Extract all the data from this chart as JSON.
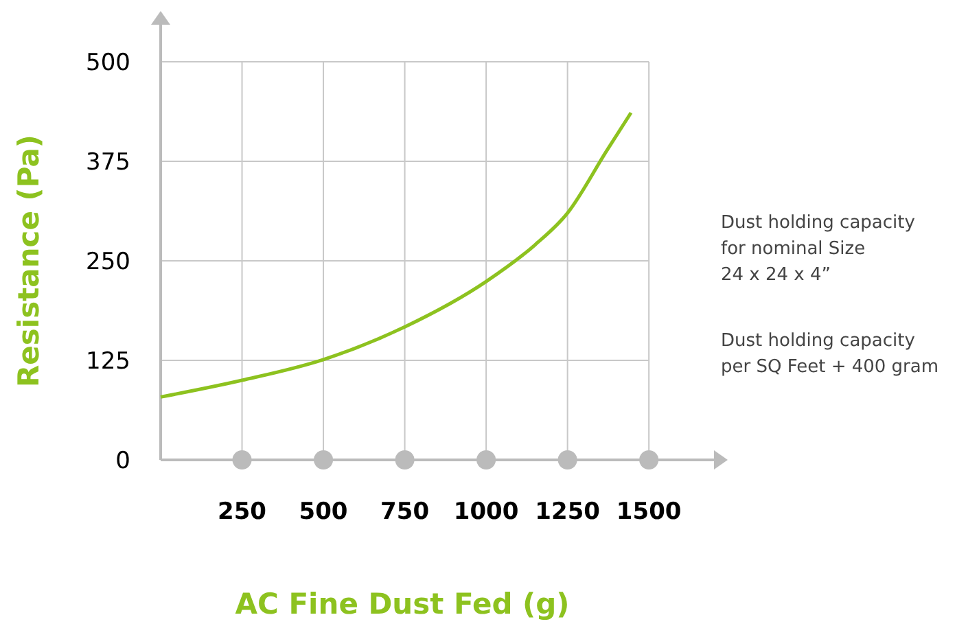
{
  "chart_data": {
    "type": "line",
    "xlabel": "AC Fine Dust Fed (g)",
    "ylabel": "Resistance (Pa)",
    "xlim": [
      0,
      1700
    ],
    "xticks": [
      250,
      500,
      750,
      1000,
      1250,
      1500
    ],
    "ylim": [
      0,
      500
    ],
    "yticks": [
      0,
      125,
      250,
      375,
      500
    ],
    "grid": true,
    "x": [
      0,
      250,
      500,
      750,
      1000,
      1150,
      1250,
      1370,
      1445
    ],
    "series": [
      {
        "color": "#8dc21f",
        "values": [
          79,
          100,
          126,
          167,
          224,
          270,
          310,
          388,
          436
        ]
      }
    ],
    "annotations": [
      "Dust holding capacity\nfor nominal Size\n24 x 24 x 4”",
      "Dust holding capacity\nper SQ Feet + 400 gram"
    ]
  }
}
